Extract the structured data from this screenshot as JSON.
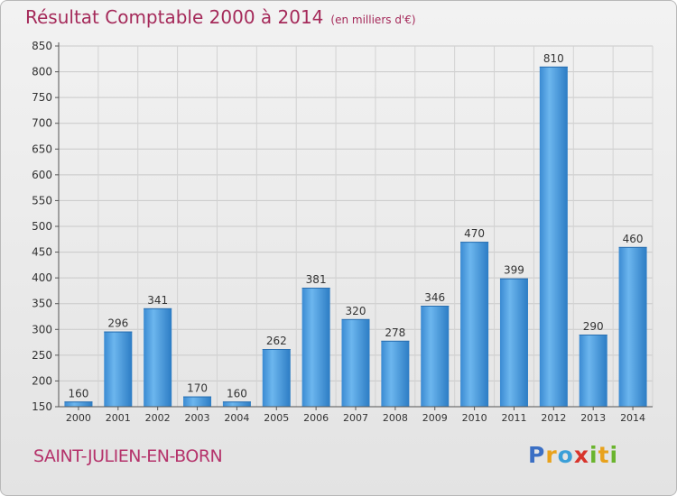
{
  "title": "Résultat Comptable 2000 à 2014",
  "subtitle": "(en milliers d'€)",
  "location": "SAINT-JULIEN-EN-BORN",
  "brand": {
    "letters": [
      "P",
      "r",
      "o",
      "x",
      "i",
      "t",
      "i"
    ],
    "colors": [
      "#3b6fc4",
      "#e8a21c",
      "#3b9fd8",
      "#d8342c",
      "#6ab42d",
      "#e8a21c",
      "#6ab42d"
    ]
  },
  "colors": {
    "bar": "#3d8fd6",
    "bar_light": "#6db4ec",
    "bar_dark": "#2a78bf",
    "text": "#333333",
    "grid": "#c8c8c8"
  },
  "chart_data": {
    "type": "bar",
    "title": "Résultat Comptable 2000 à 2014",
    "subtitle": "(en milliers d'€)",
    "xlabel": "",
    "ylabel": "",
    "categories": [
      "2000",
      "2001",
      "2002",
      "2003",
      "2004",
      "2005",
      "2006",
      "2007",
      "2008",
      "2009",
      "2010",
      "2011",
      "2012",
      "2013",
      "2014"
    ],
    "values": [
      160,
      296,
      341,
      170,
      160,
      262,
      381,
      320,
      278,
      346,
      470,
      399,
      810,
      290,
      460
    ],
    "ylim": [
      150,
      850
    ],
    "yticks": [
      150,
      200,
      250,
      300,
      350,
      400,
      450,
      500,
      550,
      600,
      650,
      700,
      750,
      800,
      850
    ],
    "grid": true
  }
}
